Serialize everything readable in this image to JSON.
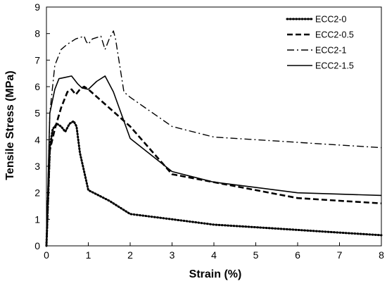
{
  "chart_data": {
    "type": "line",
    "title": "",
    "xlabel": "Strain (%)",
    "ylabel": "Tensile Stress (MPa)",
    "xlim": [
      0,
      8
    ],
    "ylim": [
      0,
      9
    ],
    "xticks": [
      "0",
      "1",
      "2",
      "3",
      "4",
      "5",
      "6",
      "7",
      "8"
    ],
    "yticks": [
      "0",
      "1",
      "2",
      "3",
      "4",
      "5",
      "6",
      "7",
      "8",
      "9"
    ],
    "grid": false,
    "legend_position": "top-right",
    "series": [
      {
        "name": "ECC2-0",
        "style": "dotted",
        "x": [
          0,
          0.08,
          0.15,
          0.25,
          0.35,
          0.45,
          0.55,
          0.65,
          0.72,
          0.8,
          0.9,
          1.0,
          1.5,
          2.0,
          3.0,
          4.0,
          5.0,
          6.0,
          7.0,
          8.0
        ],
        "y": [
          0,
          3.7,
          4.4,
          4.6,
          4.5,
          4.3,
          4.6,
          4.7,
          4.5,
          3.5,
          2.8,
          2.1,
          1.7,
          1.2,
          1.0,
          0.8,
          0.7,
          0.6,
          0.5,
          0.4
        ]
      },
      {
        "name": "ECC2-0.5",
        "style": "dashed",
        "x": [
          0,
          0.08,
          0.2,
          0.35,
          0.5,
          0.6,
          0.7,
          0.8,
          0.9,
          1.0,
          2.0,
          3.0,
          4.0,
          5.0,
          6.0,
          7.0,
          8.0
        ],
        "y": [
          0,
          3.6,
          4.4,
          5.2,
          5.8,
          5.9,
          5.7,
          5.9,
          6.0,
          5.9,
          4.5,
          2.7,
          2.4,
          2.1,
          1.8,
          1.7,
          1.6
        ]
      },
      {
        "name": "ECC2-1",
        "style": "dashdot",
        "x": [
          0,
          0.08,
          0.2,
          0.35,
          0.5,
          0.7,
          0.9,
          0.95,
          1.0,
          1.1,
          1.3,
          1.4,
          1.5,
          1.6,
          1.65,
          1.85,
          2.0,
          3.0,
          4.0,
          5.0,
          6.0,
          7.0,
          8.0
        ],
        "y": [
          0,
          5.0,
          6.8,
          7.4,
          7.6,
          7.8,
          7.9,
          7.7,
          7.6,
          7.8,
          7.9,
          7.4,
          7.8,
          8.1,
          7.8,
          5.8,
          5.6,
          4.5,
          4.1,
          4.0,
          3.9,
          3.8,
          3.7
        ]
      },
      {
        "name": "ECC2-1.5",
        "style": "solid",
        "x": [
          0,
          0.08,
          0.2,
          0.3,
          0.45,
          0.6,
          0.75,
          0.85,
          1.0,
          1.2,
          1.4,
          1.5,
          1.6,
          2.0,
          3.0,
          4.0,
          5.0,
          6.0,
          7.0,
          8.0
        ],
        "y": [
          0,
          5.0,
          5.9,
          6.3,
          6.35,
          6.4,
          6.1,
          5.95,
          5.9,
          6.2,
          6.4,
          6.1,
          5.8,
          4.05,
          2.8,
          2.4,
          2.2,
          2.0,
          1.95,
          1.9
        ]
      }
    ]
  }
}
